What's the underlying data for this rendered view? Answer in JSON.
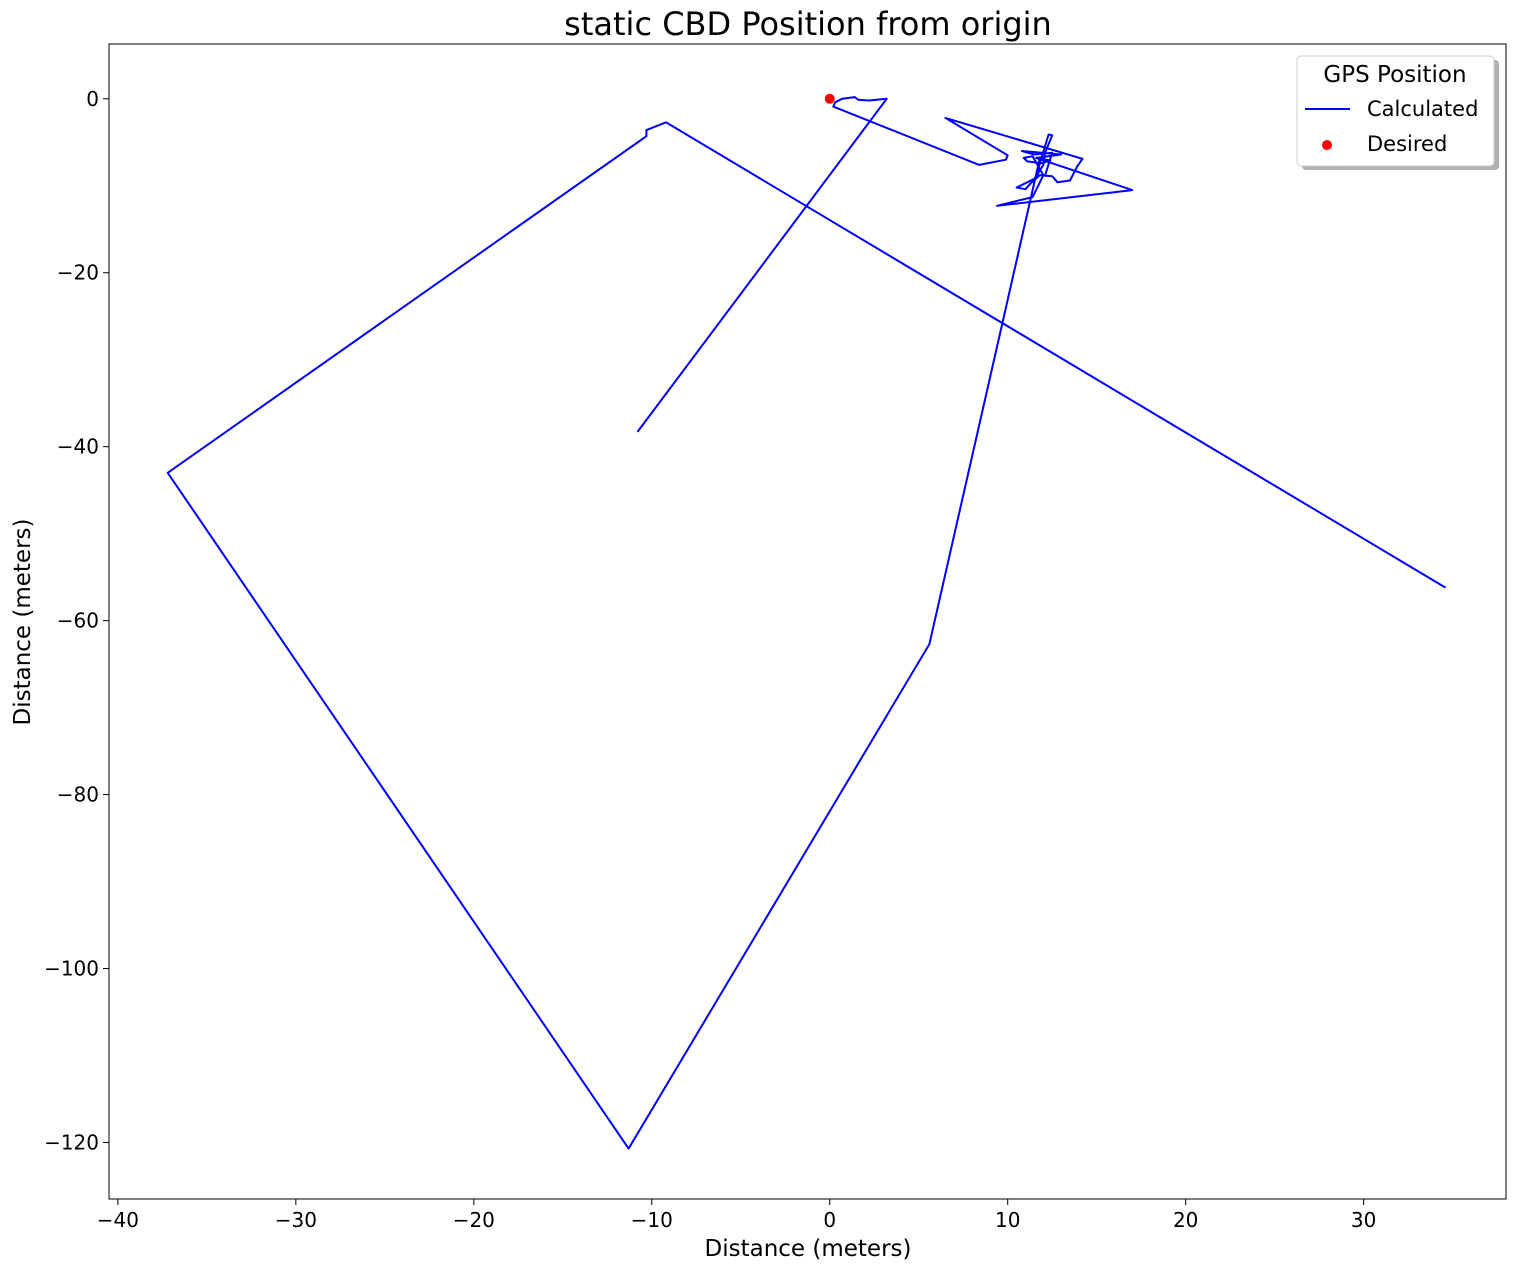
{
  "chart_data": {
    "type": "line",
    "title": "static CBD Position from origin",
    "xlabel": "Distance (meters)",
    "ylabel": "Distance (meters)",
    "xlim": [
      -40.5,
      38.0
    ],
    "ylim": [
      -126.5,
      6.3
    ],
    "xticks": [
      -40,
      -30,
      -20,
      -10,
      0,
      10,
      20,
      30
    ],
    "yticks": [
      0,
      -20,
      -40,
      -60,
      -80,
      -100,
      -120
    ],
    "xtick_labels": [
      "−40",
      "−30",
      "−20",
      "−10",
      "0",
      "10",
      "20",
      "30"
    ],
    "ytick_labels": [
      "0",
      "−20",
      "−40",
      "−60",
      "−80",
      "−100",
      "−120"
    ],
    "grid": false,
    "legend": {
      "title": "GPS Position",
      "placement": "top-right",
      "entries": [
        "Calculated",
        "Desired"
      ]
    },
    "series": [
      {
        "name": "Calculated",
        "kind": "line",
        "color": "#0000ff",
        "x": [
          -10.8,
          3.2,
          2.2,
          1.6,
          1.4,
          0.7,
          0.3,
          0.2,
          8.4,
          9.9,
          10.0,
          6.5,
          14.2,
          13.9,
          13.5,
          12.8,
          12.5,
          11.8,
          11.3,
          11.0,
          10.5,
          11.5,
          12.0,
          12.1,
          12.5,
          12.3,
          11.6,
          12.1,
          12.5,
          11.5,
          10.8,
          13.0,
          11.6,
          17.0,
          9.4,
          11.4,
          12.0,
          11.4,
          10.9,
          11.1,
          11.9,
          12.4,
          11.8,
          9.6,
          5.6,
          -11.3,
          -37.2,
          -10.3,
          -10.3,
          -9.2,
          34.6
        ],
        "y": [
          -38.3,
          0.0,
          -0.2,
          -0.1,
          0.2,
          0.0,
          -0.4,
          -0.9,
          -7.6,
          -7.0,
          -6.5,
          -2.2,
          -6.9,
          -7.8,
          -9.4,
          -9.6,
          -8.9,
          -8.8,
          -9.7,
          -10.4,
          -10.2,
          -9.2,
          -7.6,
          -6.2,
          -4.2,
          -4.1,
          -8.8,
          -8.8,
          -6.2,
          -6.4,
          -6.0,
          -6.4,
          -6.8,
          -10.5,
          -12.3,
          -11.3,
          -8.8,
          -6.6,
          -6.8,
          -7.2,
          -7.4,
          -7.1,
          -6.9,
          -26.7,
          -62.7,
          -120.7,
          -43.0,
          -4.3,
          -3.6,
          -2.7,
          -56.2
        ]
      },
      {
        "name": "Desired",
        "kind": "scatter",
        "color": "#ff0000",
        "x": [
          0
        ],
        "y": [
          0
        ]
      }
    ]
  }
}
